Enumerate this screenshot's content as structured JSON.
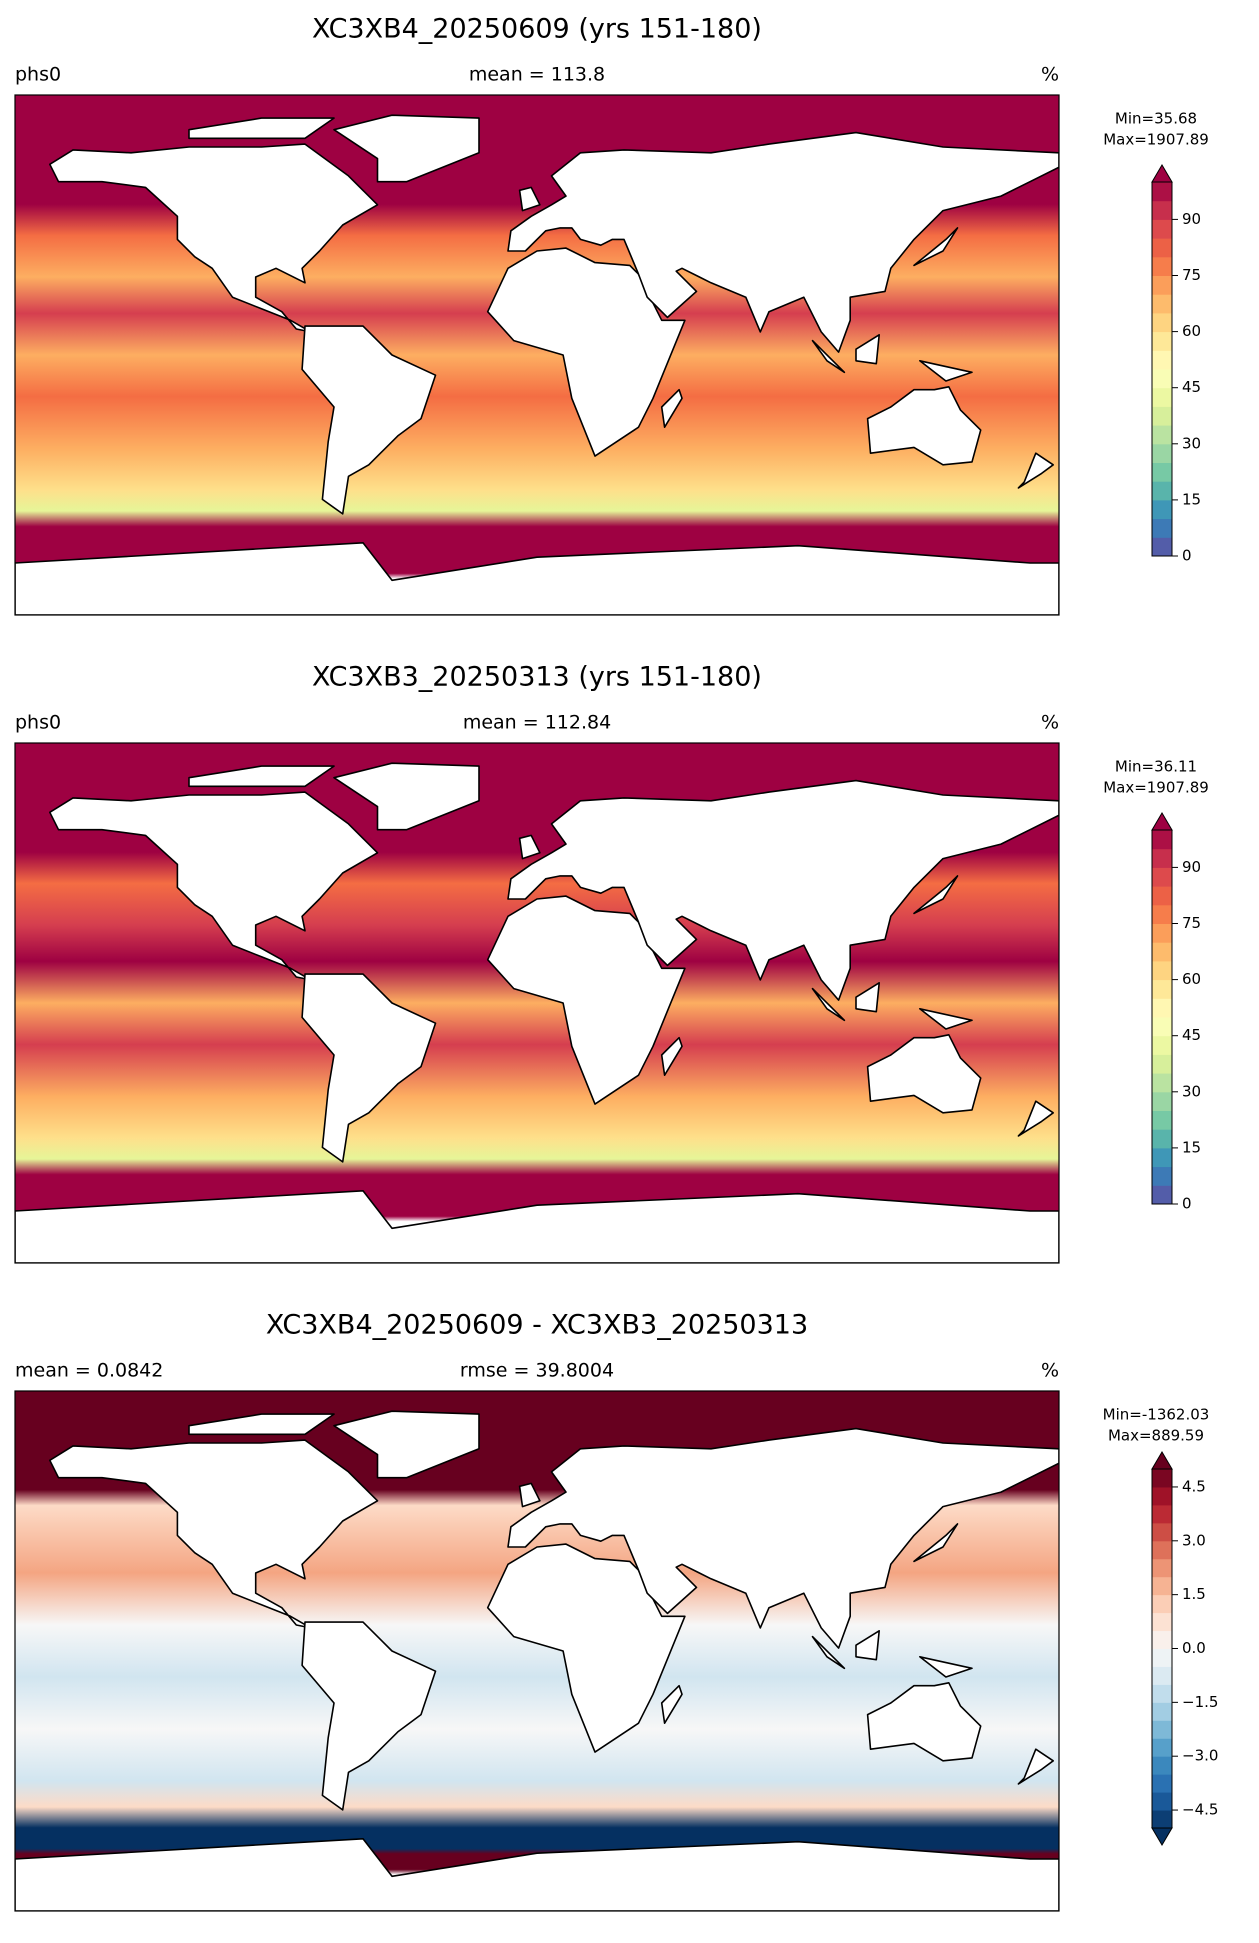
{
  "chart_data": [
    {
      "type": "map",
      "title": "XC3XB4_20250609 (yrs 151-180)",
      "left_label": "phs0",
      "center_label": "mean = 113.8",
      "units_label": "%",
      "min_label": "Min=35.68",
      "max_label": "Max=1907.89",
      "colorbar": {
        "lim": [
          0,
          100
        ],
        "ticks": [
          0,
          15,
          30,
          45,
          60,
          75,
          90
        ],
        "extend": "max",
        "cmap": [
          "#5e4fa2",
          "#3288bd",
          "#66c2a5",
          "#abdda4",
          "#e6f598",
          "#ffffbf",
          "#fee08b",
          "#fdae61",
          "#f46d43",
          "#d53e4f",
          "#9e0142"
        ]
      }
    },
    {
      "type": "map",
      "title": "XC3XB3_20250313 (yrs 151-180)",
      "left_label": "phs0",
      "center_label": "mean = 112.84",
      "units_label": "%",
      "min_label": "Min=36.11",
      "max_label": "Max=1907.89",
      "colorbar": {
        "lim": [
          0,
          100
        ],
        "ticks": [
          0,
          15,
          30,
          45,
          60,
          75,
          90
        ],
        "extend": "max",
        "cmap": [
          "#5e4fa2",
          "#3288bd",
          "#66c2a5",
          "#abdda4",
          "#e6f598",
          "#ffffbf",
          "#fee08b",
          "#fdae61",
          "#f46d43",
          "#d53e4f",
          "#9e0142"
        ]
      }
    },
    {
      "type": "map",
      "title": "XC3XB4_20250609 - XC3XB3_20250313",
      "left_label": "mean = 0.0842",
      "center_label": "rmse = 39.8004",
      "units_label": "%",
      "min_label": "Min=-1362.03",
      "max_label": "Max=889.59",
      "colorbar": {
        "lim": [
          -5,
          5
        ],
        "ticks": [
          {
            "value": -4.5,
            "label": "−4.5"
          },
          {
            "value": -3,
            "label": "−3.0"
          },
          {
            "value": -1.5,
            "label": "−1.5"
          },
          {
            "value": 0,
            "label": "0.0"
          },
          1.5,
          {
            "value": 3,
            "label": "3.0"
          },
          4.5
        ],
        "extend": "both",
        "cmap": [
          "#053061",
          "#2166ac",
          "#4393c3",
          "#92c5de",
          "#d1e5f0",
          "#f7f7f7",
          "#fddbc7",
          "#f4a582",
          "#d6604d",
          "#b2182b",
          "#67001f"
        ]
      }
    }
  ]
}
